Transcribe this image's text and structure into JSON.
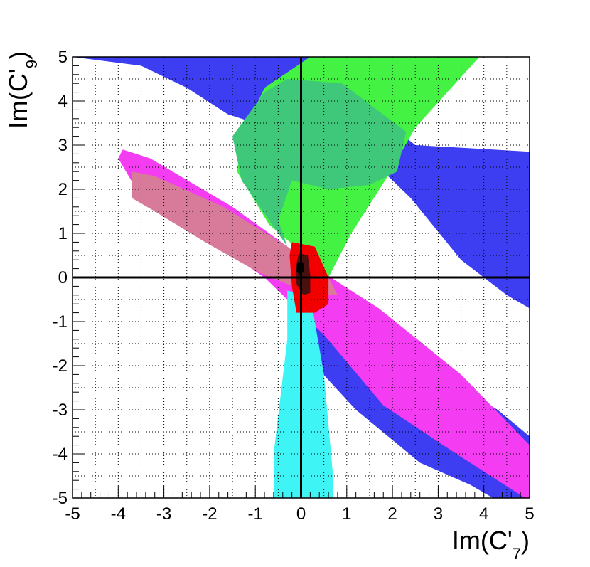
{
  "chart_data": {
    "type": "contour",
    "title": "",
    "xlabel": {
      "main": "Im(C'",
      "sub": "7",
      "close": ")"
    },
    "ylabel": {
      "main": "Im(C'",
      "sub": "9",
      "close": ")"
    },
    "xlim": [
      -5,
      5
    ],
    "ylim": [
      -5,
      5
    ],
    "grid": true,
    "x_ticks": [
      -5,
      -4,
      -3,
      -2,
      -1,
      0,
      1,
      2,
      3,
      4,
      5
    ],
    "y_ticks": [
      -5,
      -4,
      -3,
      -2,
      -1,
      0,
      1,
      2,
      3,
      4,
      5
    ],
    "x_tick_labels": [
      "-5",
      "-4",
      "-3",
      "-2",
      "-1",
      "0",
      "1",
      "2",
      "3",
      "4",
      "5"
    ],
    "y_tick_labels": [
      "-5",
      "-4",
      "-3",
      "-2",
      "-1",
      "0",
      "1",
      "2",
      "3",
      "4",
      "5"
    ],
    "reference_lines": {
      "x": 0,
      "y": 0
    },
    "regions": [
      {
        "name": "blue-upper-band",
        "color": "#3d3df2",
        "points": [
          [
            -5,
            5
          ],
          [
            0.2,
            5
          ],
          [
            0.8,
            4.4
          ],
          [
            2.5,
            3.0
          ],
          [
            5,
            2.85
          ],
          [
            5,
            -0.7
          ],
          [
            4.5,
            -0.4
          ],
          [
            3.5,
            0.4
          ],
          [
            2.4,
            1.8
          ],
          [
            1.3,
            2.9
          ],
          [
            -0.4,
            3.3
          ],
          [
            -1.6,
            3.7
          ],
          [
            -2.5,
            4.3
          ],
          [
            -3.5,
            4.8
          ]
        ]
      },
      {
        "name": "blue-lower-band",
        "color": "#3d3df2",
        "points": [
          [
            0.3,
            -0.6
          ],
          [
            1.6,
            -1.0
          ],
          [
            3.2,
            -2.3
          ],
          [
            4.3,
            -3.0
          ],
          [
            5,
            -3.6
          ],
          [
            5,
            -5
          ],
          [
            4.2,
            -5
          ],
          [
            3.7,
            -4.7
          ],
          [
            2.6,
            -4.2
          ],
          [
            1.2,
            -3.0
          ],
          [
            0.4,
            -2.1
          ],
          [
            0.1,
            -1.2
          ]
        ]
      },
      {
        "name": "green-region",
        "color": "#44f244",
        "points": [
          [
            0.2,
            5
          ],
          [
            3.9,
            5
          ],
          [
            2.5,
            3.4
          ],
          [
            1.9,
            2.3
          ],
          [
            1.1,
            1.0
          ],
          [
            0.6,
            0.0
          ],
          [
            0.1,
            0.5
          ],
          [
            -0.7,
            1.2
          ],
          [
            -1.4,
            2.4
          ],
          [
            -1.3,
            3.2
          ],
          [
            -0.8,
            4.3
          ]
        ]
      },
      {
        "name": "green-overlap",
        "color": "#3fc77a",
        "points": [
          [
            -0.3,
            4.5
          ],
          [
            0.9,
            4.4
          ],
          [
            2.3,
            3.3
          ],
          [
            2.1,
            2.4
          ],
          [
            1.5,
            2.1
          ],
          [
            0.6,
            2.0
          ],
          [
            -0.2,
            2.2
          ],
          [
            -0.5,
            1.3
          ],
          [
            -0.3,
            0.7
          ],
          [
            -1.3,
            2.2
          ],
          [
            -1.5,
            3.2
          ],
          [
            -0.8,
            4.2
          ]
        ]
      },
      {
        "name": "magenta-band",
        "color": "#f43df2",
        "points": [
          [
            -3.9,
            2.9
          ],
          [
            -3.3,
            2.7
          ],
          [
            -1.5,
            1.6
          ],
          [
            0.5,
            0.1
          ],
          [
            1.7,
            -0.7
          ],
          [
            3.5,
            -2.2
          ],
          [
            5,
            -3.8
          ],
          [
            5,
            -5
          ],
          [
            4.9,
            -5
          ],
          [
            3.4,
            -4.0
          ],
          [
            1.8,
            -2.9
          ],
          [
            0.5,
            -1.3
          ],
          [
            -0.8,
            0.0
          ],
          [
            -2.5,
            1.2
          ],
          [
            -3.6,
            2.0
          ],
          [
            -4.0,
            2.7
          ]
        ]
      },
      {
        "name": "salmon-ellipse",
        "color": "#d87a9a",
        "points": [
          [
            -3.7,
            2.4
          ],
          [
            -3.2,
            2.3
          ],
          [
            -1.7,
            1.6
          ],
          [
            -0.3,
            0.7
          ],
          [
            0.6,
            0.0
          ],
          [
            0.8,
            -0.4
          ],
          [
            0.3,
            -0.4
          ],
          [
            -0.9,
            0.1
          ],
          [
            -2.1,
            0.8
          ],
          [
            -3.2,
            1.5
          ],
          [
            -3.7,
            1.8
          ]
        ]
      },
      {
        "name": "cyan-wedge",
        "color": "#3ff4f4",
        "points": [
          [
            -0.3,
            -0.3
          ],
          [
            0.2,
            -0.4
          ],
          [
            0.5,
            -2.2
          ],
          [
            0.7,
            -4.5
          ],
          [
            0.7,
            -5
          ],
          [
            -0.6,
            -5
          ],
          [
            -0.6,
            -4.0
          ],
          [
            -0.3,
            -1.4
          ]
        ]
      },
      {
        "name": "red-blob",
        "color": "#f20000",
        "points": [
          [
            -0.2,
            0.8
          ],
          [
            0.3,
            0.7
          ],
          [
            0.6,
            0.0
          ],
          [
            0.6,
            -0.6
          ],
          [
            0.3,
            -0.8
          ],
          [
            -0.1,
            -0.8
          ],
          [
            -0.2,
            -0.2
          ],
          [
            -0.25,
            0.5
          ]
        ]
      },
      {
        "name": "dark-core",
        "color": "#4a1010",
        "points": [
          [
            -0.05,
            0.55
          ],
          [
            0.15,
            0.5
          ],
          [
            0.2,
            0.05
          ],
          [
            0.2,
            -0.35
          ],
          [
            0.05,
            -0.4
          ],
          [
            -0.1,
            -0.15
          ],
          [
            -0.1,
            0.3
          ]
        ]
      },
      {
        "name": "black-core",
        "color": "#000000",
        "points": [
          [
            -0.08,
            0.35
          ],
          [
            0.05,
            0.33
          ],
          [
            0.07,
            0.15
          ],
          [
            -0.02,
            0.05
          ],
          [
            -0.1,
            0.15
          ]
        ]
      }
    ]
  }
}
